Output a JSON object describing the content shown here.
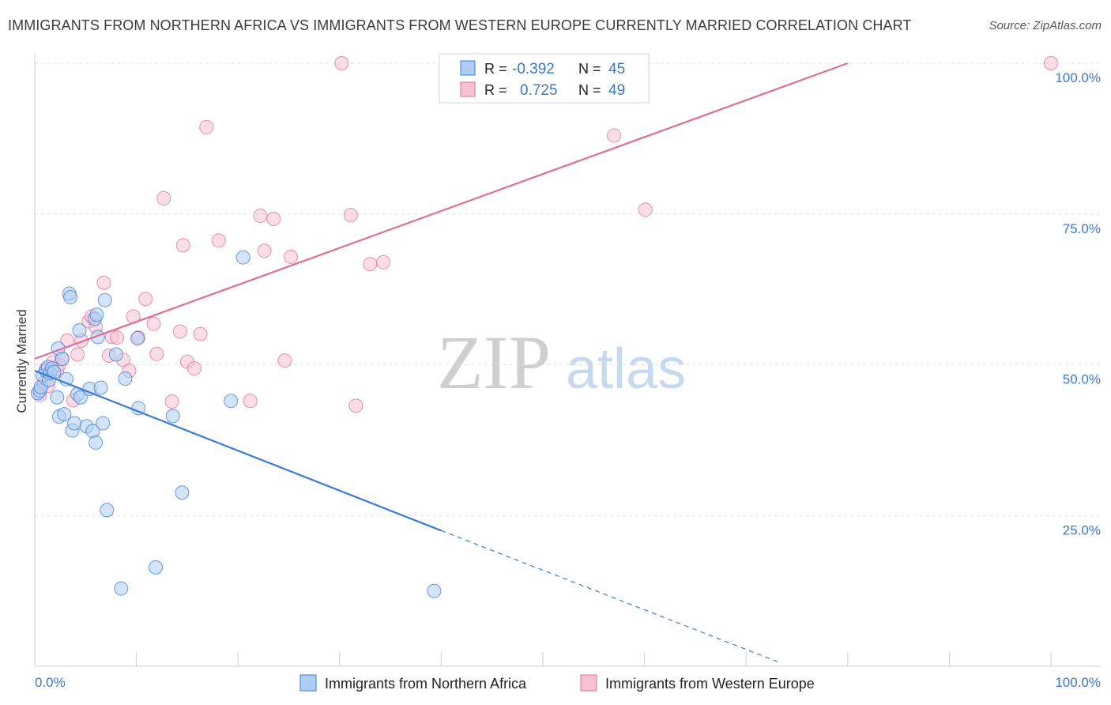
{
  "title": "IMMIGRANTS FROM NORTHERN AFRICA VS IMMIGRANTS FROM WESTERN EUROPE CURRENTLY MARRIED CORRELATION CHART",
  "source": "Source: ZipAtlas.com",
  "watermark": {
    "zip": "ZIP",
    "atlas": "atlas"
  },
  "colors": {
    "blue": "#3a7bd5",
    "blue_fill": "#aecdf3",
    "pink": "#e06d98",
    "pink_fill": "#f6c1d3",
    "grid": "#e1e1e1",
    "tick_label": "#3c78c8"
  },
  "legend": {
    "rows": [
      {
        "r_label": "R =",
        "r_value": "-0.392",
        "n_label": "N =",
        "n_value": "45"
      },
      {
        "r_label": "R =",
        "r_value": "0.725",
        "n_label": "N =",
        "n_value": "49"
      }
    ]
  },
  "chart_data": {
    "type": "scatter",
    "title": "IMMIGRANTS FROM NORTHERN AFRICA VS IMMIGRANTS FROM WESTERN EUROPE CURRENTLY MARRIED CORRELATION CHART",
    "xlabel": "",
    "ylabel": "Currently Married",
    "xlim": [
      0,
      100
    ],
    "ylim": [
      0,
      100
    ],
    "x_tick_labels": {
      "min": "0.0%",
      "max": "100.0%"
    },
    "y_ticks": [
      {
        "value": 25,
        "label": "25.0%"
      },
      {
        "value": 50,
        "label": "50.0%"
      },
      {
        "value": 75,
        "label": "75.0%"
      },
      {
        "value": 100,
        "label": "100.0%"
      }
    ],
    "series": [
      {
        "name": "Immigrants from Northern Africa",
        "color": "blue",
        "r": -0.392,
        "n": 45,
        "trend": {
          "x0": 0,
          "y0": 49.0,
          "x1": 40.0,
          "y1": 22.5,
          "dash_to_x": 73.5,
          "dash_to_y": 0.5
        },
        "points": [
          [
            0.3,
            45.3
          ],
          [
            0.5,
            45.7
          ],
          [
            0.6,
            46.3
          ],
          [
            0.8,
            48.2
          ],
          [
            1.1,
            49.0
          ],
          [
            1.3,
            49.6
          ],
          [
            1.4,
            47.5
          ],
          [
            1.5,
            48.6
          ],
          [
            1.7,
            49.4
          ],
          [
            1.9,
            48.8
          ],
          [
            2.2,
            44.6
          ],
          [
            2.3,
            52.7
          ],
          [
            2.4,
            41.4
          ],
          [
            2.7,
            51.0
          ],
          [
            2.9,
            41.8
          ],
          [
            3.1,
            47.6
          ],
          [
            3.4,
            61.8
          ],
          [
            3.5,
            61.2
          ],
          [
            3.7,
            39.1
          ],
          [
            3.9,
            40.3
          ],
          [
            4.2,
            45.1
          ],
          [
            4.4,
            55.7
          ],
          [
            4.5,
            44.6
          ],
          [
            5.1,
            39.8
          ],
          [
            5.4,
            46.0
          ],
          [
            5.7,
            39.0
          ],
          [
            5.9,
            57.6
          ],
          [
            6.0,
            37.1
          ],
          [
            6.1,
            58.3
          ],
          [
            6.2,
            54.6
          ],
          [
            6.5,
            46.2
          ],
          [
            6.7,
            40.3
          ],
          [
            6.9,
            60.7
          ],
          [
            7.1,
            25.9
          ],
          [
            8.0,
            51.7
          ],
          [
            8.5,
            12.9
          ],
          [
            8.9,
            47.7
          ],
          [
            10.1,
            54.4
          ],
          [
            10.2,
            42.8
          ],
          [
            11.9,
            16.4
          ],
          [
            13.6,
            41.5
          ],
          [
            14.5,
            28.8
          ],
          [
            19.3,
            44.0
          ],
          [
            20.5,
            67.8
          ],
          [
            39.3,
            12.5
          ]
        ]
      },
      {
        "name": "Immigrants from Western Europe",
        "color": "pink",
        "r": 0.725,
        "n": 49,
        "trend": {
          "x0": 0,
          "y0": 51.0,
          "x1": 80.0,
          "y1": 100.0
        },
        "points": [
          [
            0.5,
            45.0
          ],
          [
            0.9,
            47.0
          ],
          [
            1.1,
            49.3
          ],
          [
            1.3,
            46.5
          ],
          [
            1.8,
            50.4
          ],
          [
            2.2,
            49.0
          ],
          [
            2.4,
            50.0
          ],
          [
            2.7,
            51.0
          ],
          [
            3.2,
            54.0
          ],
          [
            3.8,
            44.1
          ],
          [
            4.2,
            51.7
          ],
          [
            4.6,
            54.0
          ],
          [
            5.3,
            57.2
          ],
          [
            5.6,
            58.0
          ],
          [
            6.0,
            56.3
          ],
          [
            6.8,
            63.6
          ],
          [
            7.3,
            51.5
          ],
          [
            7.6,
            54.6
          ],
          [
            8.1,
            54.5
          ],
          [
            8.7,
            50.8
          ],
          [
            9.3,
            49.0
          ],
          [
            9.7,
            58.0
          ],
          [
            10.2,
            54.5
          ],
          [
            10.9,
            60.9
          ],
          [
            11.7,
            56.8
          ],
          [
            12.0,
            51.8
          ],
          [
            12.7,
            77.6
          ],
          [
            13.5,
            43.9
          ],
          [
            14.3,
            55.5
          ],
          [
            14.6,
            69.8
          ],
          [
            15.0,
            50.5
          ],
          [
            15.7,
            49.4
          ],
          [
            16.3,
            55.1
          ],
          [
            16.9,
            89.4
          ],
          [
            18.1,
            70.6
          ],
          [
            21.2,
            44.0
          ],
          [
            22.2,
            74.7
          ],
          [
            22.6,
            68.9
          ],
          [
            23.5,
            74.2
          ],
          [
            24.6,
            50.7
          ],
          [
            25.2,
            67.9
          ],
          [
            30.2,
            100.0
          ],
          [
            31.1,
            74.8
          ],
          [
            31.6,
            43.2
          ],
          [
            33.0,
            66.7
          ],
          [
            34.3,
            67.0
          ],
          [
            57.0,
            88.0
          ],
          [
            60.1,
            75.7
          ],
          [
            100.0,
            100.0
          ]
        ]
      }
    ]
  },
  "bottom_legend": {
    "items": [
      {
        "label": "Immigrants from Northern Africa"
      },
      {
        "label": "Immigrants from Western Europe"
      }
    ]
  }
}
